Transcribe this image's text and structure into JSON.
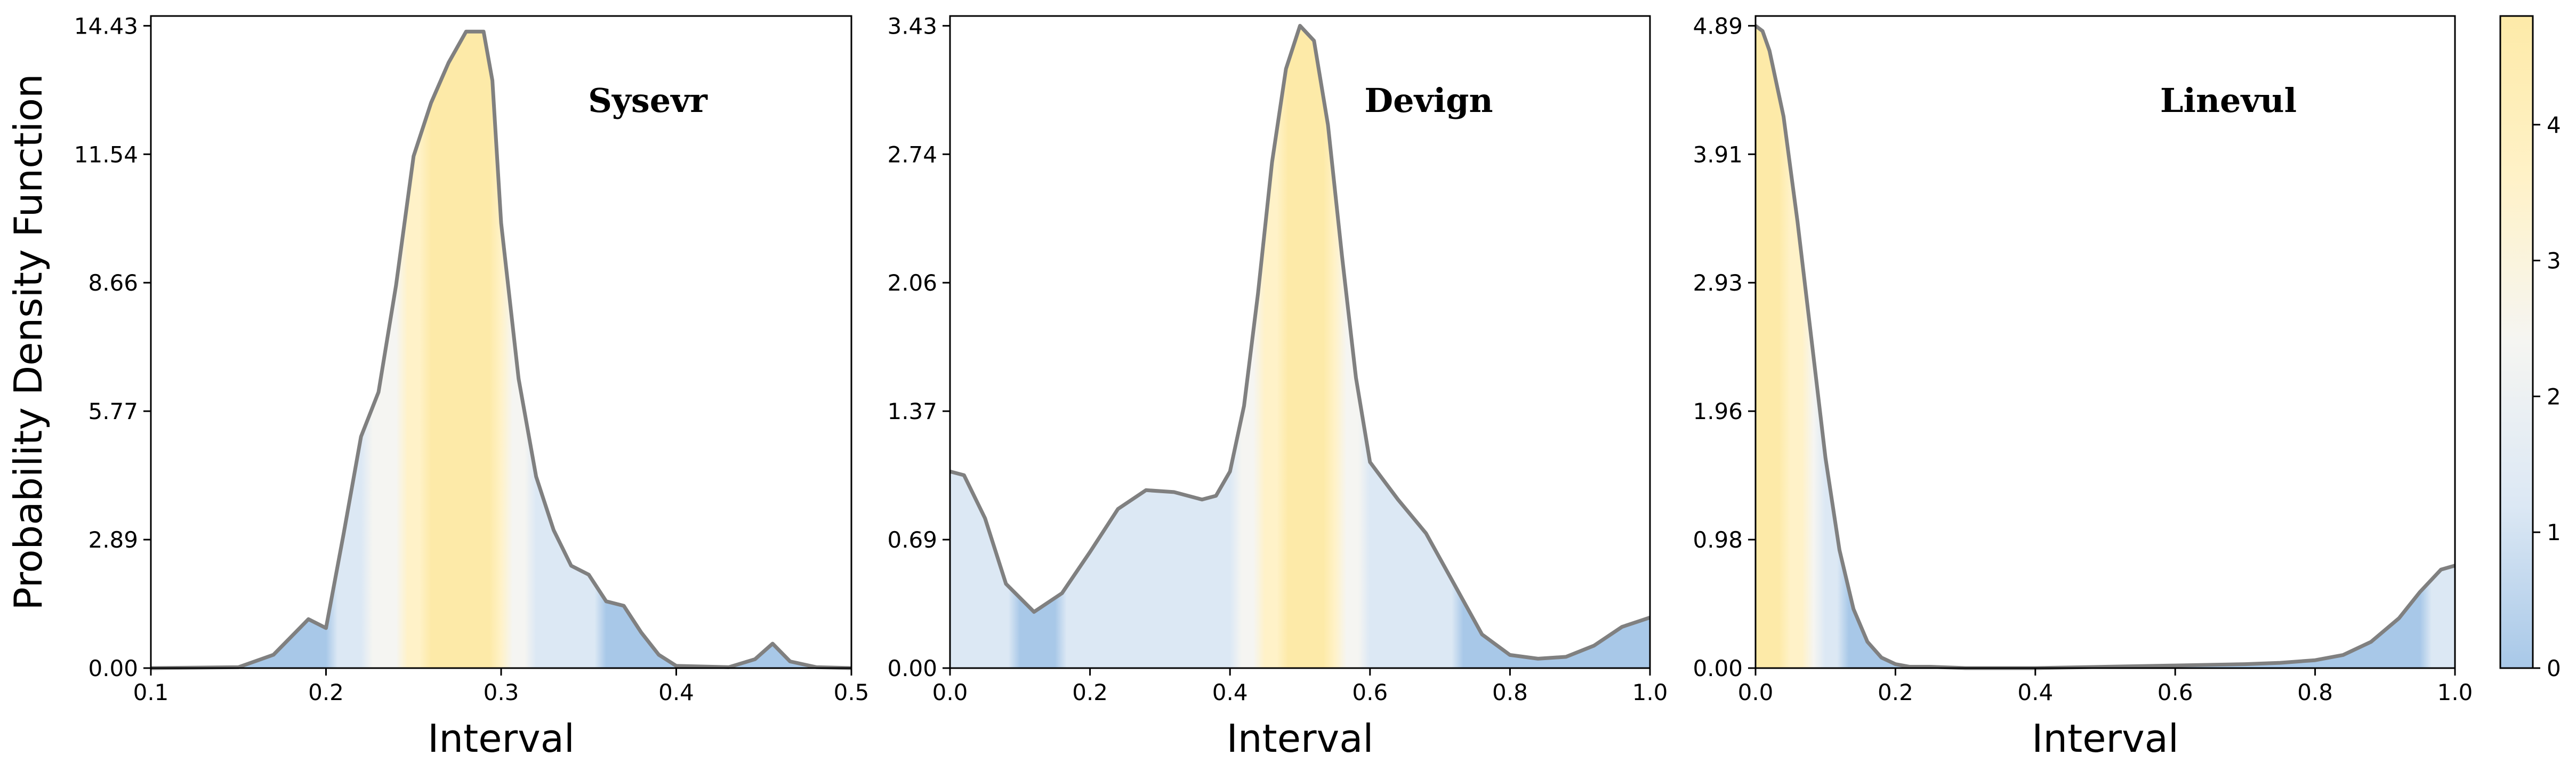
{
  "figure": {
    "ylabel": "Probability Density Function"
  },
  "colorbar": {
    "ticks": [
      "0",
      "1",
      "2",
      "3",
      "4"
    ],
    "range": [
      0,
      4.8
    ],
    "colors": [
      "#a8c8e8",
      "#dce8f4",
      "#f5f5f2",
      "#fff2c8",
      "#fdeaa8"
    ]
  },
  "chart_data": [
    {
      "type": "area",
      "title": "Sysevr",
      "xlabel": "Interval",
      "ylabel": "Probability Density Function",
      "xlim": [
        0.1,
        0.5
      ],
      "ylim": [
        0,
        14.43
      ],
      "xticks": [
        "0.1",
        "0.2",
        "0.3",
        "0.4",
        "0.5"
      ],
      "xtick_values": [
        0.1,
        0.2,
        0.3,
        0.4,
        0.5
      ],
      "yticks": [
        "0.00",
        "2.89",
        "5.77",
        "8.66",
        "11.54",
        "14.43"
      ],
      "ytick_values": [
        0,
        2.886,
        5.772,
        8.658,
        11.544,
        14.43
      ],
      "x": [
        0.1,
        0.15,
        0.17,
        0.185,
        0.19,
        0.2,
        0.21,
        0.22,
        0.23,
        0.24,
        0.25,
        0.26,
        0.27,
        0.28,
        0.29,
        0.295,
        0.3,
        0.31,
        0.32,
        0.33,
        0.34,
        0.35,
        0.36,
        0.37,
        0.38,
        0.39,
        0.4,
        0.43,
        0.445,
        0.455,
        0.465,
        0.48,
        0.5
      ],
      "y": [
        0,
        0.02,
        0.3,
        0.9,
        1.1,
        0.9,
        3.0,
        5.2,
        6.2,
        8.6,
        11.5,
        12.7,
        13.6,
        14.3,
        14.3,
        13.2,
        10.0,
        6.5,
        4.3,
        3.1,
        2.3,
        2.1,
        1.5,
        1.4,
        0.8,
        0.3,
        0.05,
        0.02,
        0.2,
        0.55,
        0.15,
        0.02,
        0.0
      ],
      "x_range": [
        0.1,
        0.5
      ],
      "series": [
        {
          "values": "y"
        }
      ]
    },
    {
      "type": "area",
      "title": "Devign",
      "xlabel": "Interval",
      "xlim": [
        0.0,
        1.0
      ],
      "ylim": [
        0,
        3.43
      ],
      "xticks": [
        "0.0",
        "0.2",
        "0.4",
        "0.6",
        "0.8",
        "1.0"
      ],
      "xtick_values": [
        0,
        0.2,
        0.4,
        0.6,
        0.8,
        1.0
      ],
      "yticks": [
        "0.00",
        "0.69",
        "1.37",
        "2.06",
        "2.74",
        "3.43"
      ],
      "ytick_values": [
        0,
        0.686,
        1.372,
        2.058,
        2.744,
        3.43
      ],
      "x": [
        0.0,
        0.02,
        0.05,
        0.08,
        0.12,
        0.16,
        0.2,
        0.24,
        0.28,
        0.32,
        0.36,
        0.38,
        0.4,
        0.42,
        0.44,
        0.46,
        0.48,
        0.5,
        0.52,
        0.54,
        0.56,
        0.58,
        0.6,
        0.64,
        0.68,
        0.72,
        0.76,
        0.8,
        0.84,
        0.88,
        0.92,
        0.96,
        1.0
      ],
      "y": [
        1.05,
        1.03,
        0.8,
        0.45,
        0.3,
        0.4,
        0.62,
        0.85,
        0.95,
        0.94,
        0.9,
        0.92,
        1.05,
        1.4,
        2.0,
        2.7,
        3.2,
        3.43,
        3.35,
        2.9,
        2.2,
        1.55,
        1.1,
        0.9,
        0.72,
        0.45,
        0.18,
        0.07,
        0.05,
        0.06,
        0.12,
        0.22,
        0.27
      ],
      "x_range": [
        0.0,
        1.0
      ],
      "series": [
        {
          "values": "y"
        }
      ]
    },
    {
      "type": "area",
      "title": "Linevul",
      "xlabel": "Interval",
      "xlim": [
        0.0,
        1.0
      ],
      "ylim": [
        0,
        4.89
      ],
      "xticks": [
        "0.0",
        "0.2",
        "0.4",
        "0.6",
        "0.8",
        "1.0"
      ],
      "xtick_values": [
        0,
        0.2,
        0.4,
        0.6,
        0.8,
        1.0
      ],
      "yticks": [
        "0.00",
        "0.98",
        "1.96",
        "2.93",
        "3.91",
        "4.89"
      ],
      "ytick_values": [
        0,
        0.978,
        1.956,
        2.934,
        3.912,
        4.89
      ],
      "x": [
        0.0,
        0.01,
        0.02,
        0.04,
        0.06,
        0.08,
        0.1,
        0.12,
        0.14,
        0.16,
        0.18,
        0.2,
        0.22,
        0.25,
        0.3,
        0.4,
        0.5,
        0.6,
        0.7,
        0.75,
        0.8,
        0.84,
        0.88,
        0.92,
        0.95,
        0.98,
        1.0
      ],
      "y": [
        4.89,
        4.85,
        4.7,
        4.2,
        3.4,
        2.5,
        1.6,
        0.9,
        0.45,
        0.2,
        0.08,
        0.03,
        0.01,
        0.01,
        0.0,
        0.0,
        0.01,
        0.02,
        0.03,
        0.04,
        0.06,
        0.1,
        0.2,
        0.38,
        0.58,
        0.75,
        0.78
      ],
      "x_range": [
        0.0,
        1.0
      ],
      "series": [
        {
          "values": "y"
        }
      ]
    }
  ]
}
